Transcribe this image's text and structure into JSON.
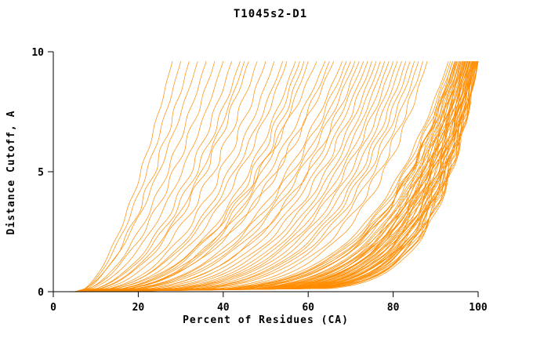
{
  "window": {
    "background": "#ffffff"
  },
  "chart_data": {
    "type": "line",
    "title": "T1045s2-D1",
    "xlabel": "Percent of Residues (CA)",
    "ylabel": "Distance Cutoff, A",
    "xlim": [
      0,
      100
    ],
    "ylim": [
      0,
      10
    ],
    "xticks": [
      0,
      20,
      40,
      60,
      80,
      100
    ],
    "yticks": [
      0,
      5,
      10
    ],
    "legend": "none",
    "grid": "off",
    "line_color": "#ff8c00",
    "axis_color": "#000000",
    "curve_top": 9.6,
    "note": "GDT-style cumulative curves, one per model, estimated from plot. Each curve encoded as [x0_start_percent, x_end_percent_at_top_cutoff, steepness_k]; x = x0 + (xe-x0)*(y/curve_top)^(1/k).",
    "curves": [
      [
        5,
        96,
        6
      ],
      [
        5.5,
        98,
        7
      ],
      [
        6,
        99,
        8
      ],
      [
        4.5,
        95,
        5
      ],
      [
        5,
        97,
        6.5
      ],
      [
        6,
        100,
        9
      ],
      [
        5.2,
        94,
        5.5
      ],
      [
        4.8,
        99.5,
        8.5
      ],
      [
        5.5,
        93,
        4.8
      ],
      [
        6.2,
        98.5,
        7.2
      ],
      [
        5,
        96.5,
        6.2
      ],
      [
        5.8,
        99,
        7.8
      ],
      [
        4.6,
        97.5,
        6.8
      ],
      [
        5.3,
        95.5,
        5.8
      ],
      [
        6.1,
        98,
        7.4
      ],
      [
        5.7,
        100,
        8.8
      ],
      [
        4.9,
        94.5,
        5.2
      ],
      [
        5.4,
        97,
        6.4
      ],
      [
        6,
        99.2,
        8.2
      ],
      [
        5.1,
        96,
        6
      ],
      [
        5.6,
        98.7,
        7.6
      ],
      [
        4.7,
        95,
        5.4
      ],
      [
        5.9,
        99.8,
        8.6
      ],
      [
        5.2,
        97.8,
        7
      ],
      [
        5.5,
        96.8,
        6.6
      ],
      [
        6.3,
        99.4,
        8
      ],
      [
        4.8,
        94,
        5
      ],
      [
        5,
        98.2,
        7.3
      ],
      [
        5.7,
        97.3,
        6.9
      ],
      [
        6,
        100,
        9.5
      ],
      [
        5.3,
        95.8,
        5.9
      ],
      [
        5.8,
        99.6,
        8.4
      ],
      [
        4.9,
        96.2,
        6.1
      ],
      [
        5.4,
        98.9,
        7.7
      ],
      [
        6.2,
        97.6,
        6.7
      ],
      [
        5.1,
        94.8,
        5.3
      ],
      [
        5.6,
        99.1,
        8.1
      ],
      [
        4.6,
        96.6,
        6.3
      ],
      [
        5.9,
        98.4,
        7.5
      ],
      [
        5.2,
        100,
        9.2
      ],
      [
        5.5,
        95.2,
        5.6
      ],
      [
        6.1,
        99.3,
        8.3
      ],
      [
        4.7,
        97.1,
        6.5
      ],
      [
        5,
        98.6,
        7.9
      ],
      [
        5.7,
        96.4,
        6.2
      ],
      [
        6,
        94.6,
        5.1
      ],
      [
        5.3,
        99.7,
        8.7
      ],
      [
        5.8,
        97.9,
        7.1
      ],
      [
        4.8,
        95.6,
        5.7
      ],
      [
        5.4,
        98.1,
        7.2
      ],
      [
        6.2,
        99.9,
        9
      ],
      [
        5.1,
        96.9,
        6.4
      ],
      [
        5.6,
        93.5,
        4.9
      ],
      [
        4.9,
        98.8,
        7.8
      ],
      [
        5.2,
        97.4,
        6.6
      ],
      [
        5,
        75,
        3.5
      ],
      [
        5.5,
        82,
        4.2
      ],
      [
        6,
        68,
        2.8
      ],
      [
        4.8,
        85,
        4.5
      ],
      [
        5.3,
        72,
        3.2
      ],
      [
        5.8,
        78,
        3.8
      ],
      [
        6.2,
        64,
        2.5
      ],
      [
        5,
        80,
        4
      ],
      [
        5.5,
        87,
        4.8
      ],
      [
        4.7,
        70,
        3
      ],
      [
        5.2,
        76,
        3.6
      ],
      [
        5.9,
        83,
        4.3
      ],
      [
        6.1,
        66,
        2.6
      ],
      [
        5.4,
        74,
        3.3
      ],
      [
        4.9,
        81,
        4.1
      ],
      [
        5.6,
        88,
        5
      ],
      [
        5.1,
        69,
        2.9
      ],
      [
        5.7,
        79,
        3.9
      ],
      [
        6,
        73,
        3.1
      ],
      [
        4.8,
        84,
        4.4
      ],
      [
        5.3,
        62,
        2.4
      ],
      [
        5.8,
        77,
        3.7
      ],
      [
        5,
        86,
        4.6
      ],
      [
        5.5,
        71,
        3
      ],
      [
        6.2,
        65,
        2.7
      ],
      [
        5,
        40,
        2
      ],
      [
        5.5,
        52,
        2.5
      ],
      [
        6,
        32,
        1.7
      ],
      [
        4.8,
        58,
        2.8
      ],
      [
        5.3,
        45,
        2.2
      ],
      [
        5.8,
        36,
        1.8
      ],
      [
        5.1,
        55,
        2.6
      ],
      [
        5.6,
        48,
        2.3
      ],
      [
        6.1,
        30,
        1.6
      ],
      [
        4.9,
        60,
        3
      ],
      [
        5.4,
        42,
        2.1
      ],
      [
        5.9,
        50,
        2.4
      ],
      [
        5.2,
        34,
        1.7
      ],
      [
        5.7,
        57,
        2.7
      ],
      [
        5,
        38,
        1.9
      ],
      [
        5.5,
        46,
        2.2
      ],
      [
        6,
        28,
        1.6
      ],
      [
        4.7,
        54,
        2.5
      ],
      [
        5.2,
        44,
        2.1
      ],
      [
        5.8,
        59,
        2.9
      ]
    ]
  }
}
